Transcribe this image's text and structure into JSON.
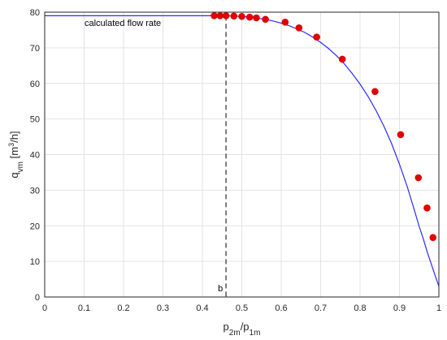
{
  "chart_data": {
    "type": "scatter",
    "xlabel": {
      "main": "p",
      "sub1": "2m",
      "sep": "/p",
      "sub2": "1m"
    },
    "ylabel": {
      "main": "q",
      "sub": "vm",
      "unit_open": " [m",
      "sup": "3",
      "unit_close": "/h]"
    },
    "xlim": [
      0,
      1
    ],
    "ylim": [
      0,
      80
    ],
    "xticks": [
      0,
      0.1,
      0.2,
      0.3,
      0.4,
      0.5,
      0.6,
      0.7,
      0.8,
      0.9,
      1
    ],
    "yticks": [
      0,
      10,
      20,
      30,
      40,
      50,
      60,
      70,
      80
    ],
    "grid": true,
    "colors": {
      "curve": "#2b2bff",
      "points": "#e00000",
      "dashed": "#555555",
      "axes": "#262626",
      "grid": "#e3e3e3"
    },
    "series": [
      {
        "kind": "line",
        "x": [
          0,
          0.46,
          0.48,
          0.5,
          0.52,
          0.54,
          0.56,
          0.58,
          0.6,
          0.62,
          0.64,
          0.66,
          0.68,
          0.7,
          0.72,
          0.74,
          0.76,
          0.78,
          0.8,
          0.82,
          0.84,
          0.86,
          0.88,
          0.9,
          0.92,
          0.94,
          0.95,
          0.96,
          0.97,
          0.98,
          0.99,
          1.0
        ],
        "y": [
          79,
          79,
          78.9,
          78.8,
          78.6,
          78.3,
          78,
          77.5,
          76.9,
          76.2,
          75.3,
          74.3,
          73,
          71.5,
          69.8,
          67.8,
          65.5,
          62.8,
          59.8,
          56.4,
          52.5,
          48.1,
          43.1,
          37.3,
          30.9,
          23.6,
          19.8,
          16.5,
          12.8,
          9.5,
          6.2,
          3
        ]
      },
      {
        "kind": "points",
        "x": [
          0.43,
          0.445,
          0.46,
          0.48,
          0.5,
          0.52,
          0.537,
          0.56,
          0.61,
          0.645,
          0.69,
          0.755,
          0.838,
          0.903,
          0.948,
          0.97,
          0.985
        ],
        "y": [
          79,
          79,
          79,
          78.9,
          78.8,
          78.6,
          78.4,
          78,
          77.2,
          75.6,
          73,
          66.8,
          57.7,
          45.6,
          33.5,
          25,
          16.7
        ]
      }
    ],
    "vline": {
      "x": 0.46,
      "label": "b"
    },
    "annotation": "calculated flow rate"
  }
}
